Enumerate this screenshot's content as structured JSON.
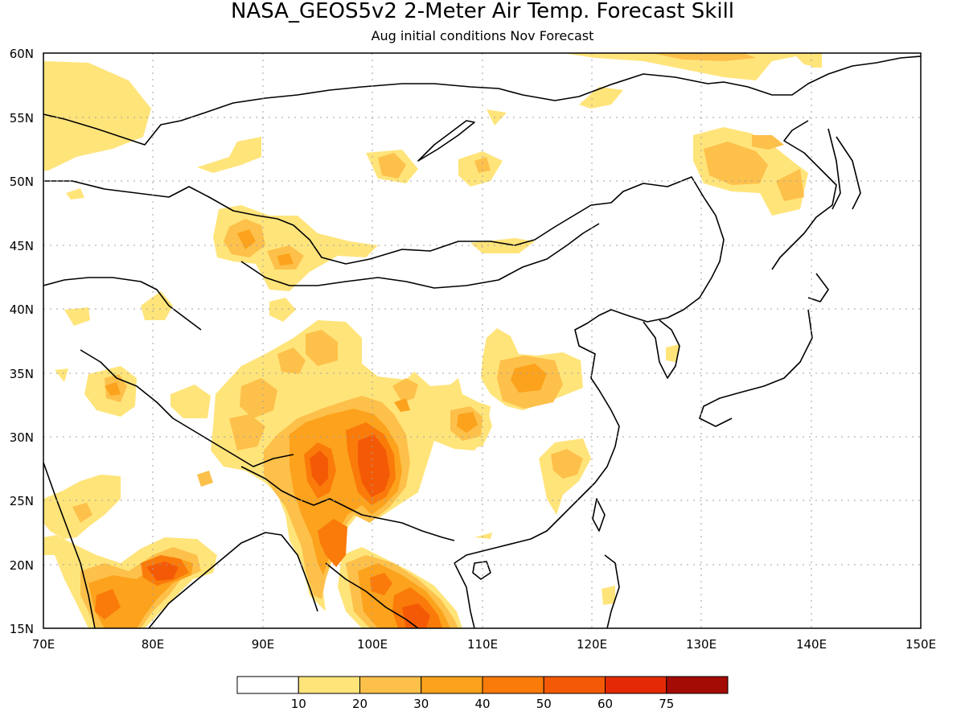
{
  "title": "NASA_GEOS5v2 2-Meter Air Temp. Forecast Skill",
  "subtitle": "Aug initial conditions  Nov Forecast",
  "map": {
    "lon_range": [
      70,
      150
    ],
    "lat_range": [
      15,
      60
    ],
    "lon_ticks": [
      "70E",
      "80E",
      "90E",
      "100E",
      "110E",
      "120E",
      "130E",
      "140E",
      "150E"
    ],
    "lat_ticks": [
      "60N",
      "55N",
      "50N",
      "45N",
      "40N",
      "35N",
      "30N",
      "25N",
      "20N",
      "15N"
    ],
    "grid": true
  },
  "colorbar": {
    "colors": [
      "#ffffff",
      "#ffe47a",
      "#fdc04a",
      "#fca21c",
      "#fa7a0a",
      "#f45a05",
      "#e32a05",
      "#a50b05"
    ],
    "labels": [
      "10",
      "20",
      "30",
      "40",
      "50",
      "60",
      "75"
    ]
  },
  "chart_data": {
    "type": "heatmap",
    "title": "NASA_GEOS5v2 2-Meter Air Temp. Forecast Skill",
    "subtitle": "Aug initial conditions  Nov Forecast",
    "xlim": [
      70,
      150
    ],
    "ylim": [
      15,
      60
    ],
    "levels": [
      10,
      20,
      30,
      40,
      50,
      60,
      75
    ],
    "regions": [
      {
        "lon": [
          70,
          75
        ],
        "lat": [
          52,
          58
        ],
        "level": 10
      },
      {
        "lon": [
          88,
          96
        ],
        "lat": [
          39,
          48
        ],
        "level": 20
      },
      {
        "lon": [
          91,
          106
        ],
        "lat": [
          27,
          38
        ],
        "level": 20
      },
      {
        "lon": [
          94,
          102
        ],
        "lat": [
          22,
          32
        ],
        "level": 50
      },
      {
        "lon": [
          93,
          96
        ],
        "lat": [
          26,
          29
        ],
        "level": 50
      },
      {
        "lon": [
          77,
          84
        ],
        "lat": [
          17,
          22
        ],
        "level": 40
      },
      {
        "lon": [
          95,
          99
        ],
        "lat": [
          19,
          24
        ],
        "level": 30
      },
      {
        "lon": [
          101,
          108
        ],
        "lat": [
          15,
          19
        ],
        "level": 40
      },
      {
        "lon": [
          109,
          120
        ],
        "lat": [
          30,
          38
        ],
        "level": 20
      },
      {
        "lon": [
          129,
          138
        ],
        "lat": [
          49,
          53
        ],
        "level": 20
      },
      {
        "lon": [
          117,
          121
        ],
        "lat": [
          23,
          29
        ],
        "level": 20
      },
      {
        "lon": [
          75,
          78
        ],
        "lat": [
          31,
          35
        ],
        "level": 20
      }
    ]
  }
}
